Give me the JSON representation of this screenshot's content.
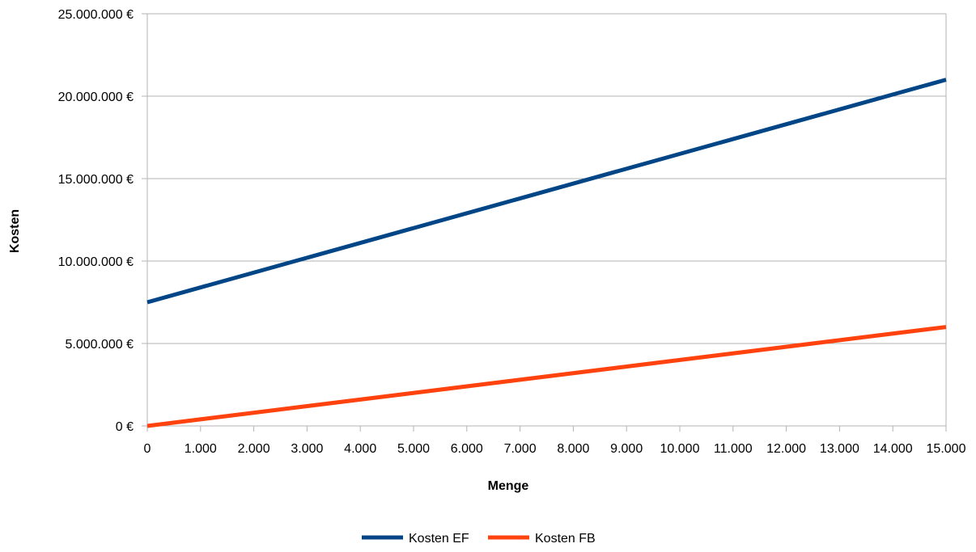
{
  "chart_data": {
    "type": "line",
    "title": "",
    "xlabel": "Menge",
    "ylabel": "Kosten",
    "x": [
      0,
      15000
    ],
    "xlim": [
      0,
      15000
    ],
    "ylim": [
      0,
      25000000
    ],
    "x_ticks": [
      0,
      1000,
      2000,
      3000,
      4000,
      5000,
      6000,
      7000,
      8000,
      9000,
      10000,
      11000,
      12000,
      13000,
      14000,
      15000
    ],
    "x_tick_labels": [
      "0",
      "1.000",
      "2.000",
      "3.000",
      "4.000",
      "5.000",
      "6.000",
      "7.000",
      "8.000",
      "9.000",
      "10.000",
      "11.000",
      "12.000",
      "13.000",
      "14.000",
      "15.000"
    ],
    "y_ticks": [
      0,
      5000000,
      10000000,
      15000000,
      20000000,
      25000000
    ],
    "y_tick_labels": [
      "0 €",
      "5.000.000 €",
      "10.000.000 €",
      "15.000.000 €",
      "20.000.000 €",
      "25.000.000 €"
    ],
    "grid": "horizontal",
    "legend_position": "bottom",
    "series": [
      {
        "name": "Kosten EF",
        "color": "#004586",
        "values": [
          7500000,
          21000000
        ]
      },
      {
        "name": "Kosten FB",
        "color": "#ff420e",
        "values": [
          0,
          6000000
        ]
      }
    ]
  }
}
